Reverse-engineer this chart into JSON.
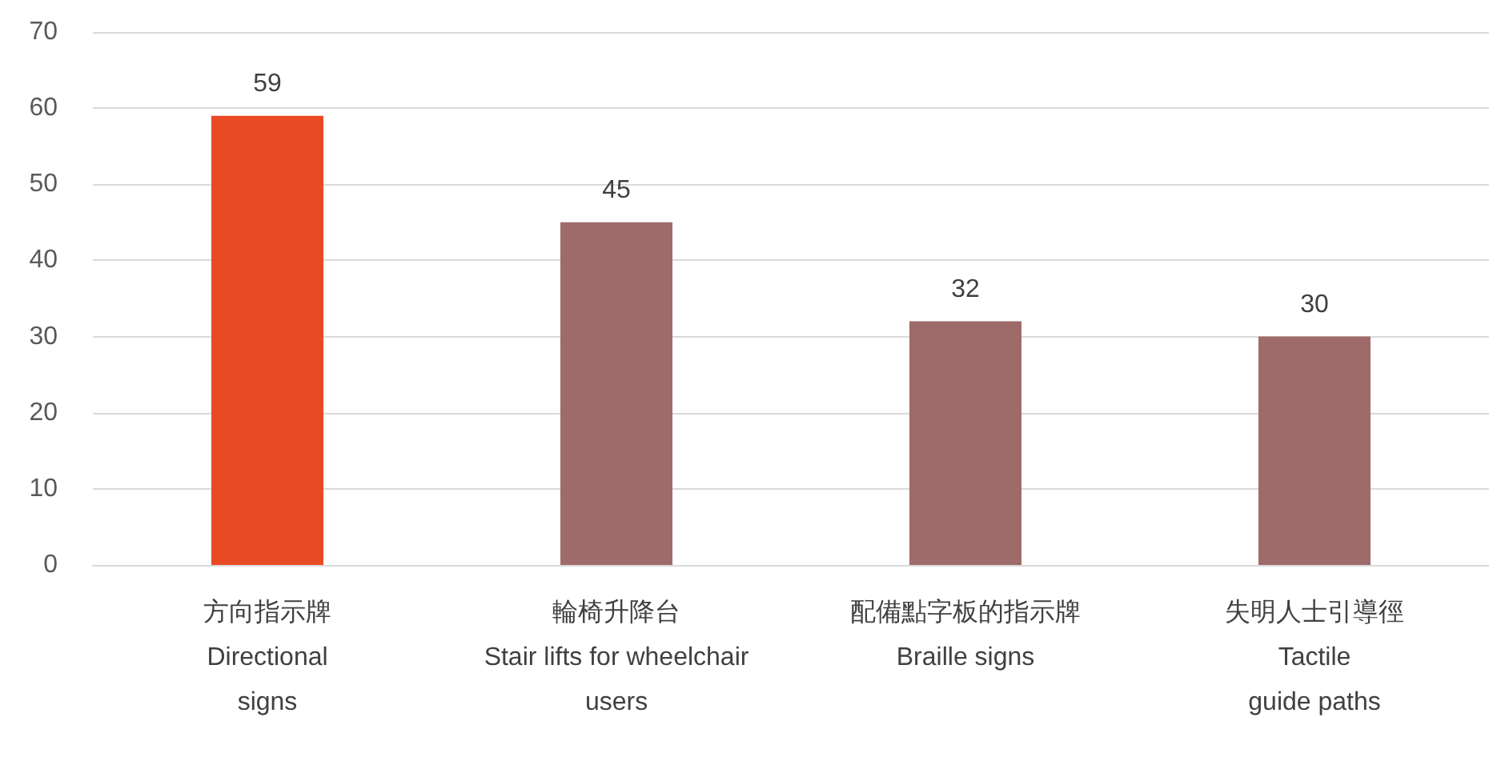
{
  "chart_data": {
    "type": "bar",
    "categories": [
      "方向指示牌\nDirectional\nsigns",
      "輪椅升降台\nStair lifts for wheelchair\nusers",
      "配備點字板的指示牌\nBraille signs",
      "失明人士引導徑\nTactile\nguide paths"
    ],
    "values": [
      59,
      45,
      32,
      30
    ],
    "colors": [
      "#e84a24",
      "#9e6b6a",
      "#9e6b6a",
      "#9e6b6a"
    ],
    "ylim": [
      0,
      70
    ],
    "yticks": [
      0,
      10,
      20,
      30,
      40,
      50,
      60,
      70
    ],
    "grid": "y",
    "data_labels": true
  }
}
